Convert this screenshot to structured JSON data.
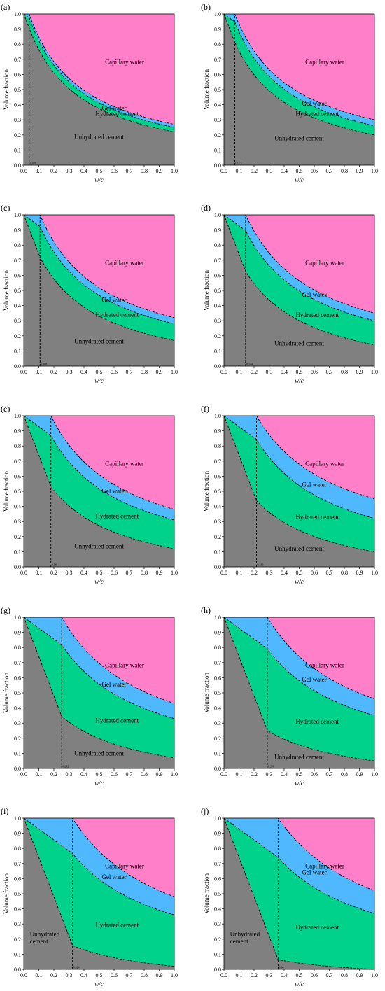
{
  "colors": {
    "capillary_water": "#ff80c8",
    "gel_water": "#50b8ff",
    "hydrated_cement": "#00d28c",
    "unhydrated_cement": "#808080"
  },
  "chart_data": [
    {
      "label": "(a)",
      "type": "area",
      "xlabel": "w/c",
      "ylabel": "Volume fraction",
      "xlim": [
        0,
        1
      ],
      "ylim": [
        0,
        1
      ],
      "xticks": [
        "0.0",
        "0.1",
        "0.2",
        "0.3",
        "0.4",
        "0.5",
        "0.6",
        "0.7",
        "0.8",
        "0.9",
        "1.0"
      ],
      "yticks": [
        "0.0",
        "0.1",
        "0.2",
        "0.3",
        "0.4",
        "0.5",
        "0.6",
        "0.7",
        "0.8",
        "0.9",
        "1.0"
      ],
      "critical_wc": 0.036,
      "critical_wc_label": "0.036",
      "upper_break": 0.036,
      "boundaries_at_wc_1": {
        "unhydrated": 0.22,
        "hydrated": 0.25,
        "gel": 0.27
      },
      "regions": {
        "capillary": "Capillary water",
        "gel": "Gel water",
        "hydrated": "Hydrated cement",
        "unhydrated": "Unhydrated cement"
      },
      "grid": false,
      "legend": "none"
    },
    {
      "label": "(b)",
      "type": "area",
      "xlabel": "w/c",
      "ylabel": "Volume fraction",
      "xlim": [
        0,
        1
      ],
      "ylim": [
        0,
        1
      ],
      "xticks": [
        "0.0",
        "0.1",
        "0.2",
        "0.3",
        "0.4",
        "0.5",
        "0.6",
        "0.7",
        "0.8",
        "0.9",
        "1.0"
      ],
      "yticks": [
        "0.0",
        "0.1",
        "0.2",
        "0.3",
        "0.4",
        "0.5",
        "0.6",
        "0.7",
        "0.8",
        "0.9",
        "1.0"
      ],
      "critical_wc": 0.072,
      "critical_wc_label": "0.072",
      "upper_break": 0.072,
      "boundaries_at_wc_1": {
        "unhydrated": 0.2,
        "hydrated": 0.26,
        "gel": 0.3
      },
      "regions": {
        "capillary": "Capillary water",
        "gel": "Gel water",
        "hydrated": "Hydrated cement",
        "unhydrated": "Unhydrated cement"
      },
      "grid": false,
      "legend": "none"
    },
    {
      "label": "(c)",
      "type": "area",
      "xlabel": "w/c",
      "ylabel": "Volume fraction",
      "xlim": [
        0,
        1
      ],
      "ylim": [
        0,
        1
      ],
      "xticks": [
        "0.0",
        "0.1",
        "0.2",
        "0.3",
        "0.4",
        "0.5",
        "0.6",
        "0.7",
        "0.8",
        "0.9",
        "1.0"
      ],
      "yticks": [
        "0.0",
        "0.1",
        "0.2",
        "0.3",
        "0.4",
        "0.5",
        "0.6",
        "0.7",
        "0.8",
        "0.9",
        "1.0"
      ],
      "critical_wc": 0.108,
      "critical_wc_label": "0.108",
      "upper_break": 0.108,
      "boundaries_at_wc_1": {
        "unhydrated": 0.17,
        "hydrated": 0.28,
        "gel": 0.32
      },
      "regions": {
        "capillary": "Capillary water",
        "gel": "Gel water",
        "hydrated": "Hydrated cement",
        "unhydrated": "Unhydrated cement"
      },
      "grid": false,
      "legend": "none"
    },
    {
      "label": "(d)",
      "type": "area",
      "xlabel": "w/c",
      "ylabel": "Volume fraction",
      "xlim": [
        0,
        1
      ],
      "ylim": [
        0,
        1
      ],
      "xticks": [
        "0.0",
        "0.1",
        "0.2",
        "0.3",
        "0.4",
        "0.5",
        "0.6",
        "0.7",
        "0.8",
        "0.9",
        "1.0"
      ],
      "yticks": [
        "0.0",
        "0.1",
        "0.2",
        "0.3",
        "0.4",
        "0.5",
        "0.6",
        "0.7",
        "0.8",
        "0.9",
        "1.0"
      ],
      "critical_wc": 0.144,
      "critical_wc_label": "0.144",
      "upper_break": 0.144,
      "boundaries_at_wc_1": {
        "unhydrated": 0.14,
        "hydrated": 0.3,
        "gel": 0.35
      },
      "regions": {
        "capillary": "Capillary water",
        "gel": "Gel water",
        "hydrated": "Hydrated cement",
        "unhydrated": "Unhydrated cement"
      },
      "grid": false,
      "legend": "none"
    },
    {
      "label": "(e)",
      "type": "area",
      "xlabel": "w/c",
      "ylabel": "Volume fraction",
      "xlim": [
        0,
        1
      ],
      "ylim": [
        0,
        1
      ],
      "xticks": [
        "0.0",
        "0.1",
        "0.2",
        "0.3",
        "0.4",
        "0.5",
        "0.6",
        "0.7",
        "0.8",
        "0.9",
        "1.0"
      ],
      "yticks": [
        "0.0",
        "0.1",
        "0.2",
        "0.3",
        "0.4",
        "0.5",
        "0.6",
        "0.7",
        "0.8",
        "0.9",
        "1.0"
      ],
      "critical_wc": 0.18,
      "critical_wc_label": "0.18",
      "upper_break": 0.18,
      "boundaries_at_wc_1": {
        "unhydrated": 0.12,
        "hydrated": 0.31,
        "gel": 0.38
      },
      "regions": {
        "capillary": "Capillary water",
        "gel": "Gel water",
        "hydrated": "Hydrated cement",
        "unhydrated": "Unhydrated cement"
      },
      "grid": false,
      "legend": "none"
    },
    {
      "label": "(f)",
      "type": "area",
      "xlabel": "w/c",
      "ylabel": "Volume fraction",
      "xlim": [
        0,
        1
      ],
      "ylim": [
        0,
        1
      ],
      "xticks": [
        "0.0",
        "0.1",
        "0.2",
        "0.3",
        "0.4",
        "0.5",
        "0.6",
        "0.7",
        "0.8",
        "0.9",
        "1.0"
      ],
      "yticks": [
        "0.0",
        "0.1",
        "0.2",
        "0.3",
        "0.4",
        "0.5",
        "0.6",
        "0.7",
        "0.8",
        "0.9",
        "1.0"
      ],
      "critical_wc": 0.216,
      "critical_wc_label": "0.216",
      "upper_break": 0.216,
      "boundaries_at_wc_1": {
        "unhydrated": 0.1,
        "hydrated": 0.32,
        "gel": 0.45
      },
      "regions": {
        "capillary": "Capillary water",
        "gel": "Gel water",
        "hydrated": "Hydrated cement",
        "unhydrated": "Unhydrated cement"
      },
      "grid": false,
      "legend": "none"
    },
    {
      "label": "(g)",
      "type": "area",
      "xlabel": "w/c",
      "ylabel": "Volume fraction",
      "xlim": [
        0,
        1
      ],
      "ylim": [
        0,
        1
      ],
      "xticks": [
        "0.0",
        "0.1",
        "0.2",
        "0.3",
        "0.4",
        "0.5",
        "0.6",
        "0.7",
        "0.8",
        "0.9",
        "1.0"
      ],
      "yticks": [
        "0.0",
        "0.1",
        "0.2",
        "0.3",
        "0.4",
        "0.5",
        "0.6",
        "0.7",
        "0.8",
        "0.9",
        "1.0"
      ],
      "critical_wc": 0.252,
      "critical_wc_label": "0.252",
      "upper_break": 0.252,
      "boundaries_at_wc_1": {
        "unhydrated": 0.07,
        "hydrated": 0.33,
        "gel": 0.43
      },
      "regions": {
        "capillary": "Capillary water",
        "gel": "Gel water",
        "hydrated": "Hydrated cement",
        "unhydrated": "Unhydrated cement"
      },
      "grid": false,
      "legend": "none"
    },
    {
      "label": "(h)",
      "type": "area",
      "xlabel": "w/c",
      "ylabel": "Volume fraction",
      "xlim": [
        0,
        1
      ],
      "ylim": [
        0,
        1
      ],
      "xticks": [
        "0.0",
        "0.1",
        "0.2",
        "0.3",
        "0.4",
        "0.5",
        "0.6",
        "0.7",
        "0.8",
        "0.9",
        "1.0"
      ],
      "yticks": [
        "0.0",
        "0.1",
        "0.2",
        "0.3",
        "0.4",
        "0.5",
        "0.6",
        "0.7",
        "0.8",
        "0.9",
        "1.0"
      ],
      "critical_wc": 0.288,
      "critical_wc_label": "0.288",
      "upper_break": 0.288,
      "boundaries_at_wc_1": {
        "unhydrated": 0.05,
        "hydrated": 0.35,
        "gel": 0.46
      },
      "regions": {
        "capillary": "Capillary water",
        "gel": "Gel water",
        "hydrated": "Hydrated cement",
        "unhydrated": "Unhydrated cement"
      },
      "grid": false,
      "legend": "none"
    },
    {
      "label": "(i)",
      "type": "area",
      "xlabel": "w/c",
      "ylabel": "Volume fraction",
      "xlim": [
        0,
        1
      ],
      "ylim": [
        0,
        1
      ],
      "xticks": [
        "0.0",
        "0.1",
        "0.2",
        "0.3",
        "0.4",
        "0.5",
        "0.6",
        "0.7",
        "0.8",
        "0.9",
        "1.0"
      ],
      "yticks": [
        "0.0",
        "0.1",
        "0.2",
        "0.3",
        "0.4",
        "0.5",
        "0.6",
        "0.7",
        "0.8",
        "0.9",
        "1.0"
      ],
      "critical_wc": 0.324,
      "critical_wc_label": "0.324",
      "upper_break": 0.324,
      "boundaries_at_wc_1": {
        "unhydrated": 0.02,
        "hydrated": 0.36,
        "gel": 0.48
      },
      "regions": {
        "capillary": "Capillary water",
        "gel": "Gel water",
        "hydrated": "Hydrated cement",
        "unhydrated": "Unhydrated\ncement"
      },
      "grid": false,
      "legend": "none"
    },
    {
      "label": "(j)",
      "type": "area",
      "xlabel": "w/c",
      "ylabel": "Volume fraction",
      "xlim": [
        0,
        1
      ],
      "ylim": [
        0,
        1
      ],
      "xticks": [
        "0.0",
        "0.1",
        "0.2",
        "0.3",
        "0.4",
        "0.5",
        "0.6",
        "0.7",
        "0.8",
        "0.9",
        "1.0"
      ],
      "yticks": [
        "0.0",
        "0.1",
        "0.2",
        "0.3",
        "0.4",
        "0.5",
        "0.6",
        "0.7",
        "0.8",
        "0.9",
        "1.0"
      ],
      "critical_wc": 0.36,
      "critical_wc_label": "0.36",
      "upper_break": 0.36,
      "boundaries_at_wc_1": {
        "unhydrated": 0.0,
        "hydrated": 0.37,
        "gel": 0.52
      },
      "regions": {
        "capillary": "Capillary water",
        "gel": "Gel water",
        "hydrated": "Hydrated cement",
        "unhydrated": "Unhydrated\ncement"
      },
      "grid": false,
      "legend": "none"
    }
  ]
}
